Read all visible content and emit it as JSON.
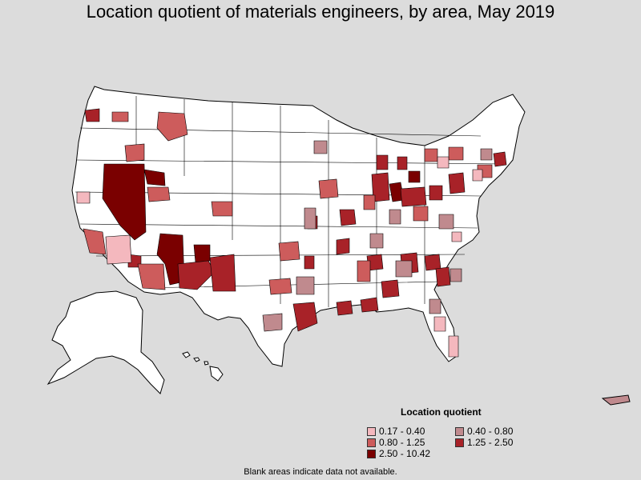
{
  "title": "Location quotient of materials engineers, by area, May 2019",
  "legend": {
    "title": "Location quotient",
    "items": [
      {
        "label": "0.17 - 0.40",
        "color": "#f4b8be"
      },
      {
        "label": "0.40 - 0.80",
        "color": "#c08a8e"
      },
      {
        "label": "0.80 - 1.25",
        "color": "#cd5c5c"
      },
      {
        "label": "1.25 - 2.50",
        "color": "#a82228"
      },
      {
        "label": "2.50 - 10.42",
        "color": "#7a0000"
      }
    ]
  },
  "footnote": "Blank areas indicate data not available.",
  "colors": {
    "background": "#dcdcdc",
    "land": "#ffffff",
    "border": "#000000"
  }
}
